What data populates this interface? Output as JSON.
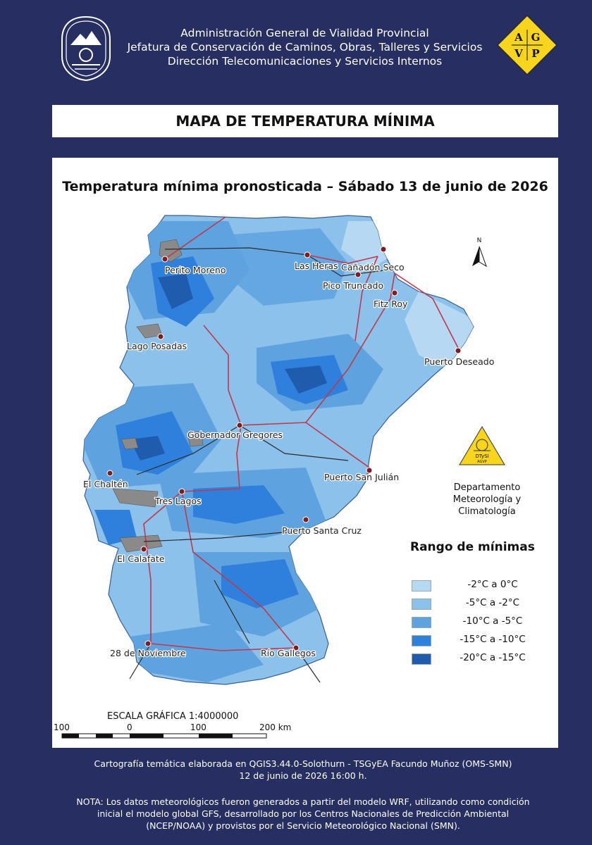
{
  "header": {
    "line1": "Administración General de Vialidad Provincial",
    "line2": "Jefatura de Conservación de Caminos, Obras, Talleres y Servicios",
    "line3": "Dirección Telecomunicaciones y Servicios Internos",
    "logo_letters": [
      "A",
      "G",
      "V",
      "P"
    ]
  },
  "title": "MAPA DE TEMPERATURA MÍNIMA",
  "map": {
    "subtitle": "Temperatura mínima pronosticada – Sábado 13 de junio de 2026",
    "north_label": "N",
    "cities": [
      "Perito Moreno",
      "Las Heras",
      "Cañadón Seco",
      "Pico Truncado",
      "Fitz Roy",
      "Lago Posadas",
      "Puerto Deseado",
      "Gobernador Gregores",
      "Puerto San Julián",
      "El Chaltén",
      "Tres Lagos",
      "Puerto Santa Cruz",
      "El Calafate",
      "28 de Noviembre",
      "Río Gallegos"
    ]
  },
  "department": {
    "logo_text": "DTySI",
    "logo_subtext": "AGVP",
    "line1": "Departamento",
    "line2": "Meteorología y Climatología"
  },
  "legend": {
    "title": "Rango  de mínimas",
    "items": [
      {
        "label": "-2°C a 0°C",
        "color": "#b7d8f2"
      },
      {
        "label": "-5°C a -2°C",
        "color": "#8cc1ec"
      },
      {
        "label": "-10°C a -5°C",
        "color": "#5ea3df"
      },
      {
        "label": "-15°C a -10°C",
        "color": "#2f80dc"
      },
      {
        "label": "-20°C a -15°C",
        "color": "#1f5cae"
      }
    ]
  },
  "scale": {
    "title": "ESCALA GRÁFICA 1:4000000",
    "ticks": [
      "100",
      "0",
      "100",
      "200 km"
    ]
  },
  "footer": {
    "credit": "Cartografía temática elaborada en QGIS3.44.0-Solothurn - TSGyEA Facundo Muñoz (OMS-SMN)",
    "date": "12 de junio de 2026 16:00 h.",
    "note": "NOTA: Los datos meteorológicos fueron generados a partir del modelo WRF, utilizando como condición inicial el modelo global GFS, desarrollado por los Centros Nacionales de Predicción Ambiental (NCEP/NOAA) y provistos por el Servicio Meteorológico Nacional (SMN)."
  },
  "colors": {
    "background": "#272e62",
    "panel": "#ffffff",
    "logo_yellow": "#f7d51d",
    "route": "#c0384a",
    "lake": "#8a8a8a"
  }
}
